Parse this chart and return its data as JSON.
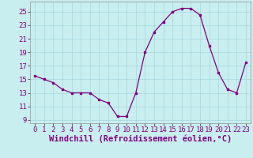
{
  "x": [
    0,
    1,
    2,
    3,
    4,
    5,
    6,
    7,
    8,
    9,
    10,
    11,
    12,
    13,
    14,
    15,
    16,
    17,
    18,
    19,
    20,
    21,
    22,
    23
  ],
  "y": [
    15.5,
    15,
    14.5,
    13.5,
    13,
    13,
    13,
    12,
    11.5,
    9.5,
    9.5,
    13,
    19,
    22,
    23.5,
    25,
    25.5,
    25.5,
    24.5,
    20,
    16,
    13.5,
    13,
    17.5
  ],
  "line_color": "#800080",
  "marker_color": "#800080",
  "bg_color": "#c8eef0",
  "grid_color": "#a8d8dc",
  "ylabel_ticks": [
    9,
    11,
    13,
    15,
    17,
    19,
    21,
    23,
    25
  ],
  "xlim": [
    -0.5,
    23.5
  ],
  "ylim": [
    8.5,
    26.5
  ],
  "xticks": [
    0,
    1,
    2,
    3,
    4,
    5,
    6,
    7,
    8,
    9,
    10,
    11,
    12,
    13,
    14,
    15,
    16,
    17,
    18,
    19,
    20,
    21,
    22,
    23
  ],
  "xlabel": "Windchill (Refroidissement éolien,°C)",
  "tick_fontsize": 6.5,
  "xlabel_fontsize": 7.5
}
